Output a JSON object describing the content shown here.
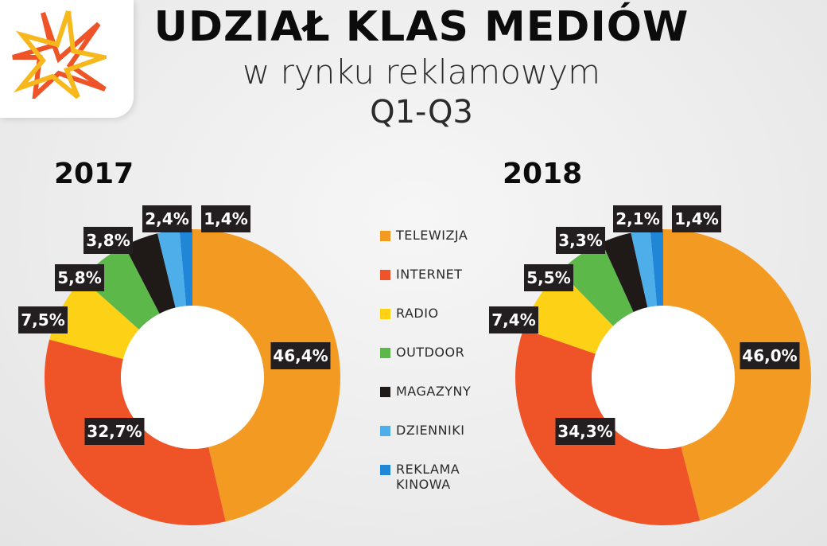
{
  "header": {
    "title": "UDZIAŁ KLAS MEDIÓW",
    "subtitle": "w rynku reklamowym",
    "period": "Q1-Q3"
  },
  "logo": {
    "icon": "star-burst-logo"
  },
  "colors": {
    "TELEWIZJA": "#f39a22",
    "INTERNET": "#ee5427",
    "RADIO": "#fcd116",
    "OUTDOOR": "#5cb849",
    "MAGAZYNY": "#1f1a17",
    "DZIENNIKI": "#4daee9",
    "REKLAMA KINOWA": "#1f86d8"
  },
  "chart_data": [
    {
      "type": "pie",
      "donut": true,
      "title": "2017",
      "categories": [
        "TELEWIZJA",
        "INTERNET",
        "RADIO",
        "OUTDOOR",
        "MAGAZYNY",
        "DZIENNIKI",
        "REKLAMA KINOWA"
      ],
      "values": [
        46.4,
        32.7,
        7.5,
        5.8,
        3.8,
        2.4,
        1.4
      ],
      "data_labels": [
        "46,4%",
        "32,7%",
        "7,5%",
        "5,8%",
        "3,8%",
        "2,4%",
        "1,4%"
      ],
      "legend_placement": "right"
    },
    {
      "type": "pie",
      "donut": true,
      "title": "2018",
      "categories": [
        "TELEWIZJA",
        "INTERNET",
        "RADIO",
        "OUTDOOR",
        "MAGAZYNY",
        "DZIENNIKI",
        "REKLAMA KINOWA"
      ],
      "values": [
        46.0,
        34.3,
        7.4,
        5.5,
        3.3,
        2.1,
        1.4
      ],
      "data_labels": [
        "46,0%",
        "34,3%",
        "7,4%",
        "5,5%",
        "3,3%",
        "2,1%",
        "1,4%"
      ],
      "legend_placement": "left"
    }
  ],
  "legend": {
    "items": [
      {
        "label": "TELEWIZJA"
      },
      {
        "label": "INTERNET"
      },
      {
        "label": "RADIO"
      },
      {
        "label": "OUTDOOR"
      },
      {
        "label": "MAGAZYNY"
      },
      {
        "label": "DZIENNIKI"
      },
      {
        "label": "REKLAMA KINOWA"
      }
    ]
  }
}
